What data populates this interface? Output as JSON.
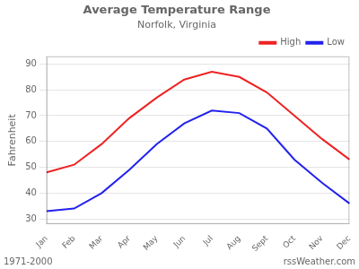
{
  "chart_data": {
    "type": "line",
    "title": "Average Temperature Range",
    "subtitle": "Norfolk, Virginia",
    "ylabel": "Fahrenheit",
    "annotations": [
      "1971-2000",
      "rssWeather.com"
    ],
    "categories": [
      "Jan",
      "Feb",
      "Mar",
      "Apr",
      "May",
      "Jun",
      "Jul",
      "Aug",
      "Sept",
      "Oct",
      "Nov",
      "Dec"
    ],
    "series": [
      {
        "name": "High",
        "color": "#ee2222",
        "values": [
          48,
          51,
          59,
          69,
          77,
          84,
          87,
          85,
          79,
          70,
          61,
          53
        ]
      },
      {
        "name": "Low",
        "color": "#2222ee",
        "values": [
          33,
          34,
          40,
          49,
          59,
          67,
          72,
          71,
          65,
          53,
          44,
          36
        ]
      }
    ],
    "ylim": [
      28,
      93
    ],
    "yticks": [
      30,
      40,
      50,
      60,
      70,
      80,
      90
    ],
    "grid": true,
    "legend": "upper right"
  }
}
